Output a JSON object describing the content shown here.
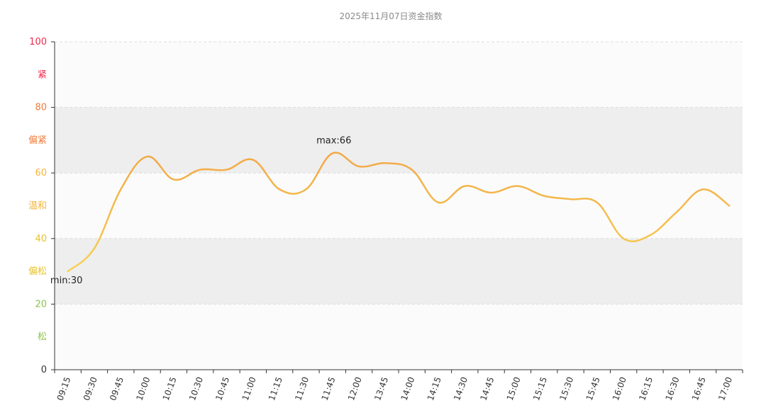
{
  "chart_data": {
    "type": "line",
    "title": "2025年11月07日资金指数",
    "xlabel": "",
    "ylabel": "",
    "ylim": [
      0,
      100
    ],
    "yticks": [
      {
        "value": 0,
        "label": "0",
        "color": "#333333"
      },
      {
        "value": 20,
        "label": "20",
        "color": "#8bc34a"
      },
      {
        "value": 40,
        "label": "40",
        "color": "#e6c22a"
      },
      {
        "value": 60,
        "label": "60",
        "color": "#f5b53a"
      },
      {
        "value": 80,
        "label": "80",
        "color": "#f07c3c"
      },
      {
        "value": 100,
        "label": "100",
        "color": "#f0284a"
      }
    ],
    "bands": [
      {
        "from": 0,
        "to": 20,
        "label": "松",
        "color": "#8bc34a",
        "fill": "#fbfbfb"
      },
      {
        "from": 20,
        "to": 40,
        "label": "偏松",
        "color": "#e6c22a",
        "fill": "#eeeeee"
      },
      {
        "from": 40,
        "to": 60,
        "label": "温和",
        "color": "#f5b53a",
        "fill": "#fbfbfb"
      },
      {
        "from": 60,
        "to": 80,
        "label": "偏紧",
        "color": "#f07c3c",
        "fill": "#eeeeee"
      },
      {
        "from": 80,
        "to": 100,
        "label": "紧",
        "color": "#f0284a",
        "fill": "#fbfbfb"
      }
    ],
    "categories": [
      "09:15",
      "09:30",
      "09:45",
      "10:00",
      "10:15",
      "10:30",
      "10:45",
      "11:00",
      "11:15",
      "11:30",
      "11:45",
      "12:00",
      "13:45",
      "14:00",
      "14:15",
      "14:30",
      "14:45",
      "15:00",
      "15:15",
      "15:30",
      "15:45",
      "16:00",
      "16:15",
      "16:30",
      "16:45",
      "17:00"
    ],
    "series": [
      {
        "values": [
          30,
          37,
          55,
          65,
          58,
          61,
          61,
          64,
          55,
          55,
          66,
          62,
          63,
          61,
          51,
          56,
          54,
          56,
          53,
          52,
          51,
          40,
          41,
          48,
          55,
          50
        ],
        "color_low": "#f7d154",
        "color_high": "#f2a345"
      }
    ],
    "annotations": [
      {
        "label": "max:66",
        "category": "11:45",
        "value": 66
      },
      {
        "label": "min:30",
        "category": "09:15",
        "value": 30
      }
    ],
    "grid": true,
    "legend": "none"
  }
}
